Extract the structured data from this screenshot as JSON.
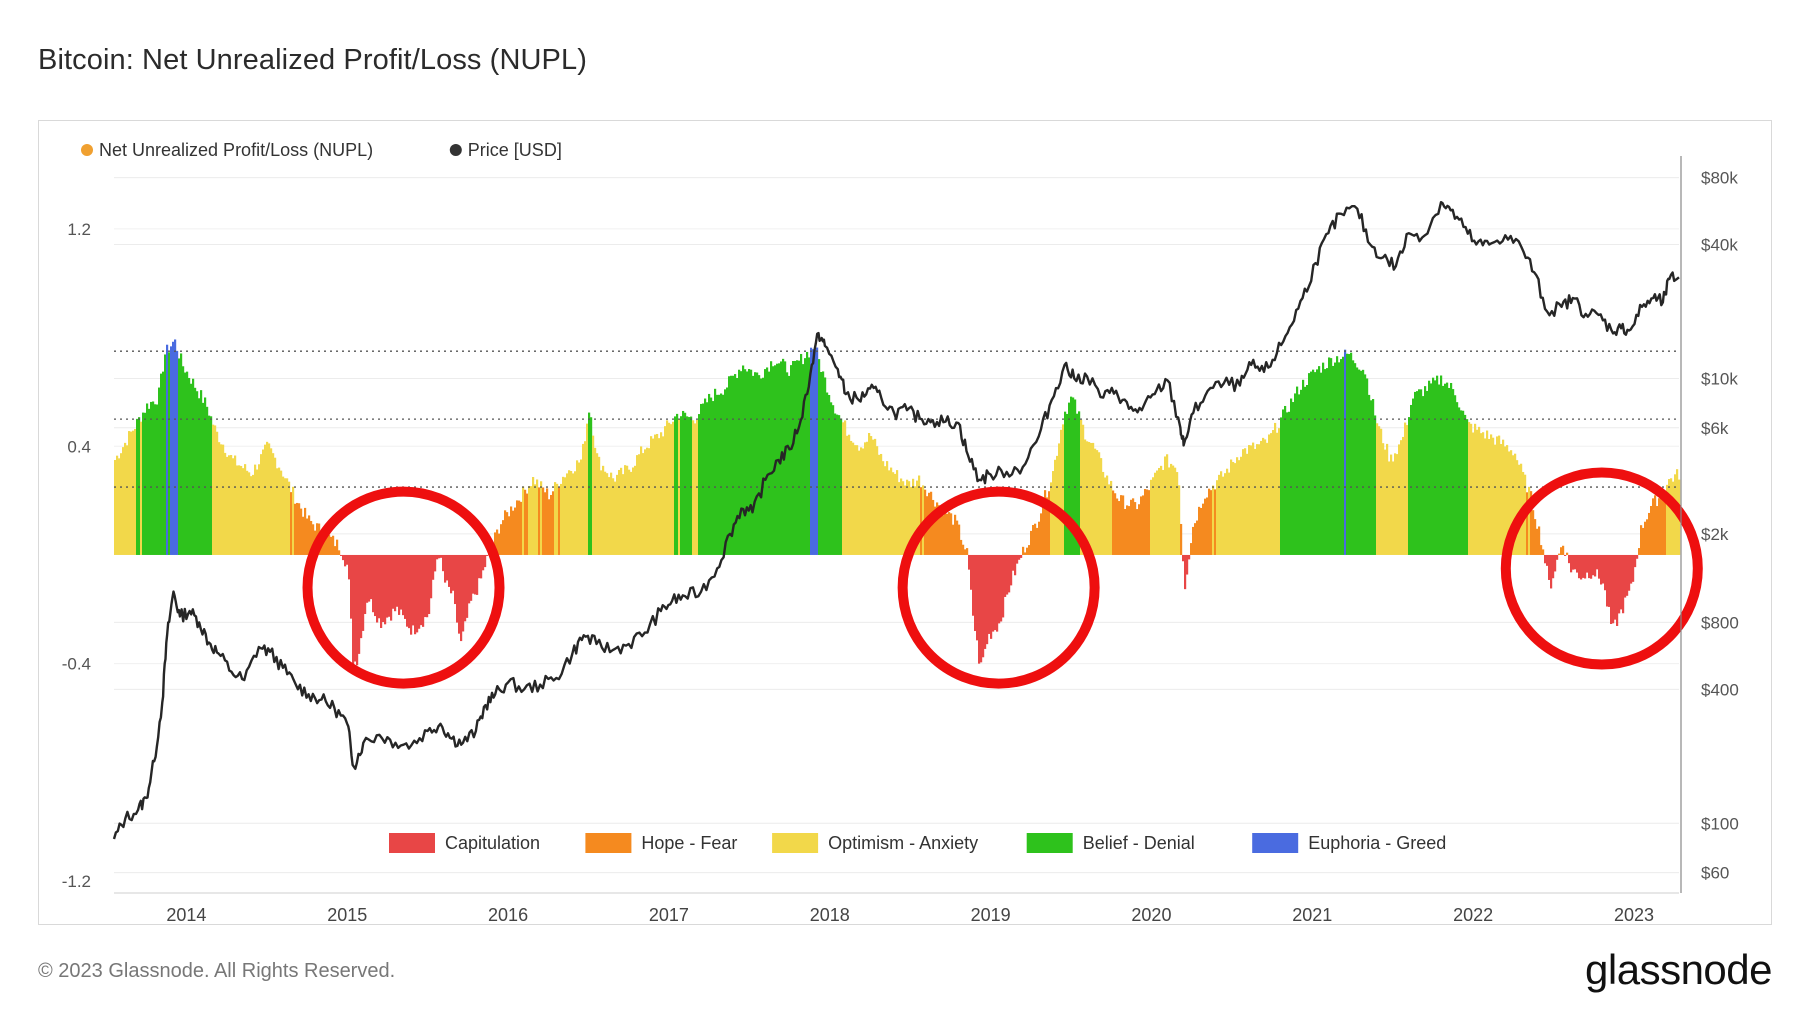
{
  "title": "Bitcoin: Net Unrealized Profit/Loss (NUPL)",
  "footer": {
    "copyright": "© 2023 Glassnode. All Rights Reserved.",
    "logo_text": "glassnode"
  },
  "chart_data": {
    "type": "area",
    "title": "Bitcoin: Net Unrealized Profit/Loss (NUPL)",
    "legend_top": [
      {
        "label": "Net Unrealized Profit/Loss (NUPL)",
        "color": "#f0a030"
      },
      {
        "label": "Price [USD]",
        "color": "#333333"
      }
    ],
    "zone_legend": [
      {
        "label": "Capitulation",
        "color": "#e84646"
      },
      {
        "label": "Hope - Fear",
        "color": "#f58a1f"
      },
      {
        "label": "Optimism - Anxiety",
        "color": "#f2d84a"
      },
      {
        "label": "Belief - Denial",
        "color": "#2ec21c"
      },
      {
        "label": "Euphoria - Greed",
        "color": "#4a6be0"
      }
    ],
    "x_ticks": [
      "2014",
      "2015",
      "2016",
      "2017",
      "2018",
      "2019",
      "2020",
      "2021",
      "2022",
      "2023"
    ],
    "x_domain": [
      2013.55,
      2023.28
    ],
    "y_left": {
      "ticks": [
        "1.2",
        "0.4",
        "-0.4",
        "-1.2"
      ],
      "tick_values": [
        1.2,
        0.4,
        -0.4,
        -1.2
      ],
      "range": [
        -1.2,
        1.45
      ]
    },
    "y_right": {
      "ticks": [
        "$80k",
        "$40k",
        "$10k",
        "$6k",
        "$2k",
        "$800",
        "$400",
        "$100",
        "$60"
      ],
      "tick_values": [
        80000,
        40000,
        10000,
        6000,
        2000,
        800,
        400,
        100,
        60
      ],
      "scale": "log",
      "range": [
        55,
        95000
      ]
    },
    "reference_lines_nupl": [
      0.75,
      0.5,
      0.25
    ],
    "nupl_series": {
      "name": "Net Unrealized Profit/Loss (NUPL)",
      "points": [
        [
          2013.55,
          0.35
        ],
        [
          2013.65,
          0.45
        ],
        [
          2013.75,
          0.55
        ],
        [
          2013.82,
          0.58
        ],
        [
          2013.86,
          0.74
        ],
        [
          2013.92,
          0.79
        ],
        [
          2013.97,
          0.7
        ],
        [
          2014.05,
          0.62
        ],
        [
          2014.12,
          0.55
        ],
        [
          2014.18,
          0.45
        ],
        [
          2014.28,
          0.35
        ],
        [
          2014.4,
          0.3
        ],
        [
          2014.5,
          0.4
        ],
        [
          2014.58,
          0.32
        ],
        [
          2014.68,
          0.2
        ],
        [
          2014.75,
          0.13
        ],
        [
          2014.85,
          0.08
        ],
        [
          2014.95,
          0.03
        ],
        [
          2015.0,
          -0.05
        ],
        [
          2015.03,
          -0.4
        ],
        [
          2015.06,
          -0.38
        ],
        [
          2015.12,
          -0.15
        ],
        [
          2015.2,
          -0.25
        ],
        [
          2015.3,
          -0.2
        ],
        [
          2015.4,
          -0.28
        ],
        [
          2015.5,
          -0.22
        ],
        [
          2015.56,
          0.02
        ],
        [
          2015.6,
          -0.1
        ],
        [
          2015.65,
          -0.15
        ],
        [
          2015.7,
          -0.33
        ],
        [
          2015.76,
          -0.18
        ],
        [
          2015.82,
          -0.1
        ],
        [
          2015.87,
          0.0
        ],
        [
          2015.95,
          0.12
        ],
        [
          2016.05,
          0.2
        ],
        [
          2016.15,
          0.28
        ],
        [
          2016.25,
          0.22
        ],
        [
          2016.35,
          0.3
        ],
        [
          2016.45,
          0.35
        ],
        [
          2016.5,
          0.55
        ],
        [
          2016.55,
          0.35
        ],
        [
          2016.65,
          0.28
        ],
        [
          2016.75,
          0.32
        ],
        [
          2016.85,
          0.4
        ],
        [
          2016.95,
          0.45
        ],
        [
          2017.05,
          0.52
        ],
        [
          2017.15,
          0.5
        ],
        [
          2017.25,
          0.58
        ],
        [
          2017.35,
          0.62
        ],
        [
          2017.45,
          0.7
        ],
        [
          2017.55,
          0.66
        ],
        [
          2017.65,
          0.72
        ],
        [
          2017.75,
          0.68
        ],
        [
          2017.85,
          0.74
        ],
        [
          2017.9,
          0.77
        ],
        [
          2017.96,
          0.65
        ],
        [
          2018.02,
          0.55
        ],
        [
          2018.1,
          0.46
        ],
        [
          2018.18,
          0.4
        ],
        [
          2018.25,
          0.44
        ],
        [
          2018.32,
          0.35
        ],
        [
          2018.4,
          0.3
        ],
        [
          2018.48,
          0.26
        ],
        [
          2018.55,
          0.28
        ],
        [
          2018.65,
          0.2
        ],
        [
          2018.78,
          0.12
        ],
        [
          2018.85,
          0.0
        ],
        [
          2018.88,
          -0.2
        ],
        [
          2018.93,
          -0.42
        ],
        [
          2018.98,
          -0.3
        ],
        [
          2019.05,
          -0.25
        ],
        [
          2019.12,
          -0.1
        ],
        [
          2019.2,
          0.02
        ],
        [
          2019.28,
          0.12
        ],
        [
          2019.38,
          0.3
        ],
        [
          2019.45,
          0.52
        ],
        [
          2019.5,
          0.58
        ],
        [
          2019.58,
          0.45
        ],
        [
          2019.65,
          0.38
        ],
        [
          2019.72,
          0.28
        ],
        [
          2019.8,
          0.2
        ],
        [
          2019.9,
          0.18
        ],
        [
          2019.98,
          0.25
        ],
        [
          2020.08,
          0.35
        ],
        [
          2020.16,
          0.32
        ],
        [
          2020.2,
          -0.12
        ],
        [
          2020.25,
          0.1
        ],
        [
          2020.32,
          0.22
        ],
        [
          2020.45,
          0.3
        ],
        [
          2020.55,
          0.38
        ],
        [
          2020.65,
          0.4
        ],
        [
          2020.72,
          0.42
        ],
        [
          2020.82,
          0.52
        ],
        [
          2020.92,
          0.62
        ],
        [
          2021.02,
          0.68
        ],
        [
          2021.12,
          0.72
        ],
        [
          2021.22,
          0.74
        ],
        [
          2021.32,
          0.68
        ],
        [
          2021.4,
          0.48
        ],
        [
          2021.48,
          0.35
        ],
        [
          2021.55,
          0.42
        ],
        [
          2021.62,
          0.58
        ],
        [
          2021.72,
          0.62
        ],
        [
          2021.8,
          0.65
        ],
        [
          2021.88,
          0.6
        ],
        [
          2021.96,
          0.48
        ],
        [
          2022.05,
          0.45
        ],
        [
          2022.15,
          0.42
        ],
        [
          2022.25,
          0.38
        ],
        [
          2022.35,
          0.22
        ],
        [
          2022.42,
          0.05
        ],
        [
          2022.47,
          -0.12
        ],
        [
          2022.55,
          0.05
        ],
        [
          2022.6,
          -0.05
        ],
        [
          2022.67,
          -0.08
        ],
        [
          2022.74,
          -0.06
        ],
        [
          2022.8,
          -0.1
        ],
        [
          2022.86,
          -0.28
        ],
        [
          2022.92,
          -0.2
        ],
        [
          2022.98,
          -0.12
        ],
        [
          2023.04,
          0.1
        ],
        [
          2023.1,
          0.18
        ],
        [
          2023.16,
          0.22
        ],
        [
          2023.22,
          0.28
        ],
        [
          2023.28,
          0.3
        ]
      ]
    },
    "price_series": {
      "name": "Price [USD]",
      "points": [
        [
          2013.55,
          85
        ],
        [
          2013.62,
          105
        ],
        [
          2013.7,
          115
        ],
        [
          2013.75,
          130
        ],
        [
          2013.8,
          190
        ],
        [
          2013.85,
          350
        ],
        [
          2013.88,
          700
        ],
        [
          2013.92,
          1100
        ],
        [
          2013.96,
          850
        ],
        [
          2014.02,
          900
        ],
        [
          2014.08,
          800
        ],
        [
          2014.14,
          650
        ],
        [
          2014.2,
          580
        ],
        [
          2014.28,
          480
        ],
        [
          2014.36,
          440
        ],
        [
          2014.45,
          620
        ],
        [
          2014.52,
          590
        ],
        [
          2014.6,
          500
        ],
        [
          2014.68,
          420
        ],
        [
          2014.76,
          380
        ],
        [
          2014.84,
          360
        ],
        [
          2014.92,
          330
        ],
        [
          2015.0,
          280
        ],
        [
          2015.04,
          180
        ],
        [
          2015.1,
          230
        ],
        [
          2015.2,
          250
        ],
        [
          2015.3,
          230
        ],
        [
          2015.4,
          225
        ],
        [
          2015.5,
          260
        ],
        [
          2015.58,
          280
        ],
        [
          2015.65,
          240
        ],
        [
          2015.72,
          230
        ],
        [
          2015.8,
          260
        ],
        [
          2015.86,
          340
        ],
        [
          2015.92,
          380
        ],
        [
          2016.0,
          430
        ],
        [
          2016.1,
          400
        ],
        [
          2016.2,
          420
        ],
        [
          2016.3,
          450
        ],
        [
          2016.4,
          580
        ],
        [
          2016.47,
          700
        ],
        [
          2016.55,
          640
        ],
        [
          2016.65,
          600
        ],
        [
          2016.75,
          640
        ],
        [
          2016.85,
          720
        ],
        [
          2016.95,
          900
        ],
        [
          2017.02,
          1000
        ],
        [
          2017.1,
          1050
        ],
        [
          2017.2,
          1100
        ],
        [
          2017.3,
          1400
        ],
        [
          2017.38,
          2000
        ],
        [
          2017.45,
          2600
        ],
        [
          2017.52,
          2500
        ],
        [
          2017.6,
          3500
        ],
        [
          2017.68,
          4300
        ],
        [
          2017.75,
          4800
        ],
        [
          2017.82,
          6500
        ],
        [
          2017.88,
          10500
        ],
        [
          2017.93,
          16000
        ],
        [
          2017.97,
          14000
        ],
        [
          2018.05,
          11000
        ],
        [
          2018.1,
          8500
        ],
        [
          2018.18,
          8000
        ],
        [
          2018.25,
          9000
        ],
        [
          2018.32,
          8200
        ],
        [
          2018.4,
          7000
        ],
        [
          2018.48,
          7200
        ],
        [
          2018.56,
          6600
        ],
        [
          2018.64,
          6500
        ],
        [
          2018.72,
          6400
        ],
        [
          2018.8,
          6300
        ],
        [
          2018.86,
          4500
        ],
        [
          2018.93,
          3500
        ],
        [
          2019.0,
          3700
        ],
        [
          2019.1,
          3800
        ],
        [
          2019.2,
          4000
        ],
        [
          2019.3,
          5500
        ],
        [
          2019.38,
          8000
        ],
        [
          2019.46,
          11500
        ],
        [
          2019.52,
          10000
        ],
        [
          2019.6,
          10200
        ],
        [
          2019.7,
          8200
        ],
        [
          2019.78,
          8800
        ],
        [
          2019.86,
          7300
        ],
        [
          2019.94,
          7200
        ],
        [
          2020.02,
          8500
        ],
        [
          2020.1,
          9800
        ],
        [
          2020.18,
          6000
        ],
        [
          2020.2,
          5000
        ],
        [
          2020.26,
          7000
        ],
        [
          2020.35,
          8800
        ],
        [
          2020.45,
          9500
        ],
        [
          2020.55,
          9300
        ],
        [
          2020.62,
          11500
        ],
        [
          2020.7,
          10700
        ],
        [
          2020.78,
          13000
        ],
        [
          2020.86,
          17000
        ],
        [
          2020.94,
          23000
        ],
        [
          2021.02,
          33000
        ],
        [
          2021.1,
          45000
        ],
        [
          2021.18,
          55000
        ],
        [
          2021.28,
          58000
        ],
        [
          2021.36,
          40000
        ],
        [
          2021.44,
          35000
        ],
        [
          2021.52,
          32000
        ],
        [
          2021.6,
          45000
        ],
        [
          2021.7,
          44000
        ],
        [
          2021.8,
          62000
        ],
        [
          2021.86,
          57000
        ],
        [
          2021.94,
          48000
        ],
        [
          2022.02,
          40000
        ],
        [
          2022.1,
          40000
        ],
        [
          2022.2,
          44000
        ],
        [
          2022.3,
          39000
        ],
        [
          2022.38,
          30000
        ],
        [
          2022.46,
          20000
        ],
        [
          2022.55,
          21000
        ],
        [
          2022.62,
          23000
        ],
        [
          2022.7,
          19500
        ],
        [
          2022.78,
          19300
        ],
        [
          2022.86,
          16500
        ],
        [
          2022.92,
          16800
        ],
        [
          2022.98,
          16600
        ],
        [
          2023.05,
          21000
        ],
        [
          2023.12,
          23000
        ],
        [
          2023.18,
          22000
        ],
        [
          2023.22,
          28000
        ],
        [
          2023.28,
          28500
        ]
      ]
    },
    "annotations": [
      {
        "type": "circle",
        "label": "2015 capitulation",
        "center": [
          2015.35,
          -0.12
        ]
      },
      {
        "type": "circle",
        "label": "2018-19 capitulation",
        "center": [
          2019.05,
          -0.12
        ]
      },
      {
        "type": "circle",
        "label": "2022 capitulation",
        "center": [
          2022.8,
          -0.05
        ]
      }
    ]
  }
}
